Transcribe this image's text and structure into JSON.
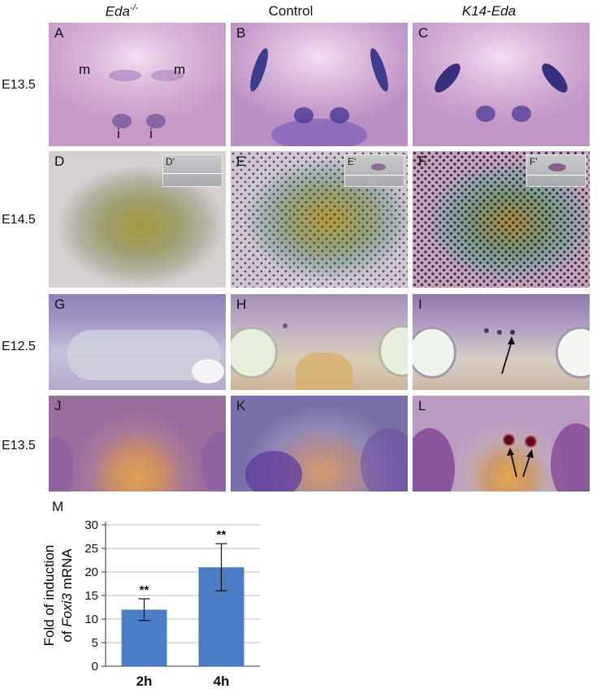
{
  "figure": {
    "column_headers": [
      {
        "text_main": "Eda",
        "text_sup": "-/-",
        "italic": true
      },
      {
        "text_main": "Control",
        "text_sup": "",
        "italic": false
      },
      {
        "text_main": "K14-Eda",
        "text_sup": "",
        "italic": true
      }
    ],
    "row_labels": [
      "E13.5",
      "E14.5",
      "E12.5",
      "E13.5"
    ],
    "panels": {
      "A": "A",
      "B": "B",
      "C": "C",
      "D": "D",
      "E": "E",
      "F": "F",
      "G": "G",
      "H": "H",
      "I": "I",
      "J": "J",
      "K": "K",
      "L": "L"
    },
    "insets": {
      "D": "D'",
      "E": "E'",
      "F": "F'"
    },
    "annotations": {
      "molar": "m",
      "incisor": "i"
    },
    "colors": {
      "stain_purple": "#8a4fa8",
      "tissue_pink": "#c99bc8",
      "bar_blue": "#4a7dc4"
    }
  },
  "chart_label": "M",
  "chart_data": {
    "type": "bar",
    "categories": [
      "2h",
      "4h"
    ],
    "values": [
      12,
      21
    ],
    "error": [
      2.3,
      5.0
    ],
    "significance": [
      "**",
      "**"
    ],
    "ylabel_line1": "Fold of induction",
    "ylabel_line2_pre": "of ",
    "ylabel_line2_gene": "Foxi3",
    "ylabel_line2_post": " mRNA",
    "ylim": [
      0,
      30
    ],
    "yticks": [
      0,
      5,
      10,
      15,
      20,
      25,
      30
    ],
    "grid": true
  }
}
